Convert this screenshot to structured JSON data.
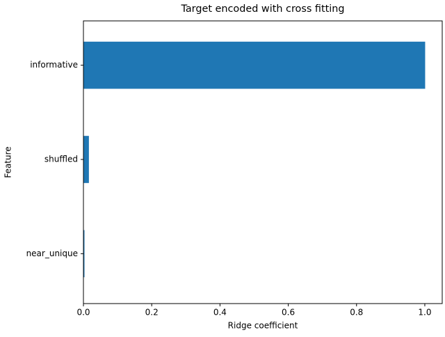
{
  "chart_data": {
    "type": "barh",
    "title": "Target encoded with cross fitting",
    "x_label": "Ridge coefficient",
    "y_label": "Feature",
    "categories": [
      "informative",
      "shuffled",
      "near_unique"
    ],
    "values": [
      1.001,
      0.016,
      0.003
    ],
    "color": "#1f77b4",
    "xlim": [
      0,
      1.051
    ],
    "xticks": [
      {
        "value": 0,
        "label": "0.0"
      },
      0.2,
      0.4,
      0.6,
      0.8,
      {
        "value": 1,
        "label": "1.0"
      }
    ]
  }
}
